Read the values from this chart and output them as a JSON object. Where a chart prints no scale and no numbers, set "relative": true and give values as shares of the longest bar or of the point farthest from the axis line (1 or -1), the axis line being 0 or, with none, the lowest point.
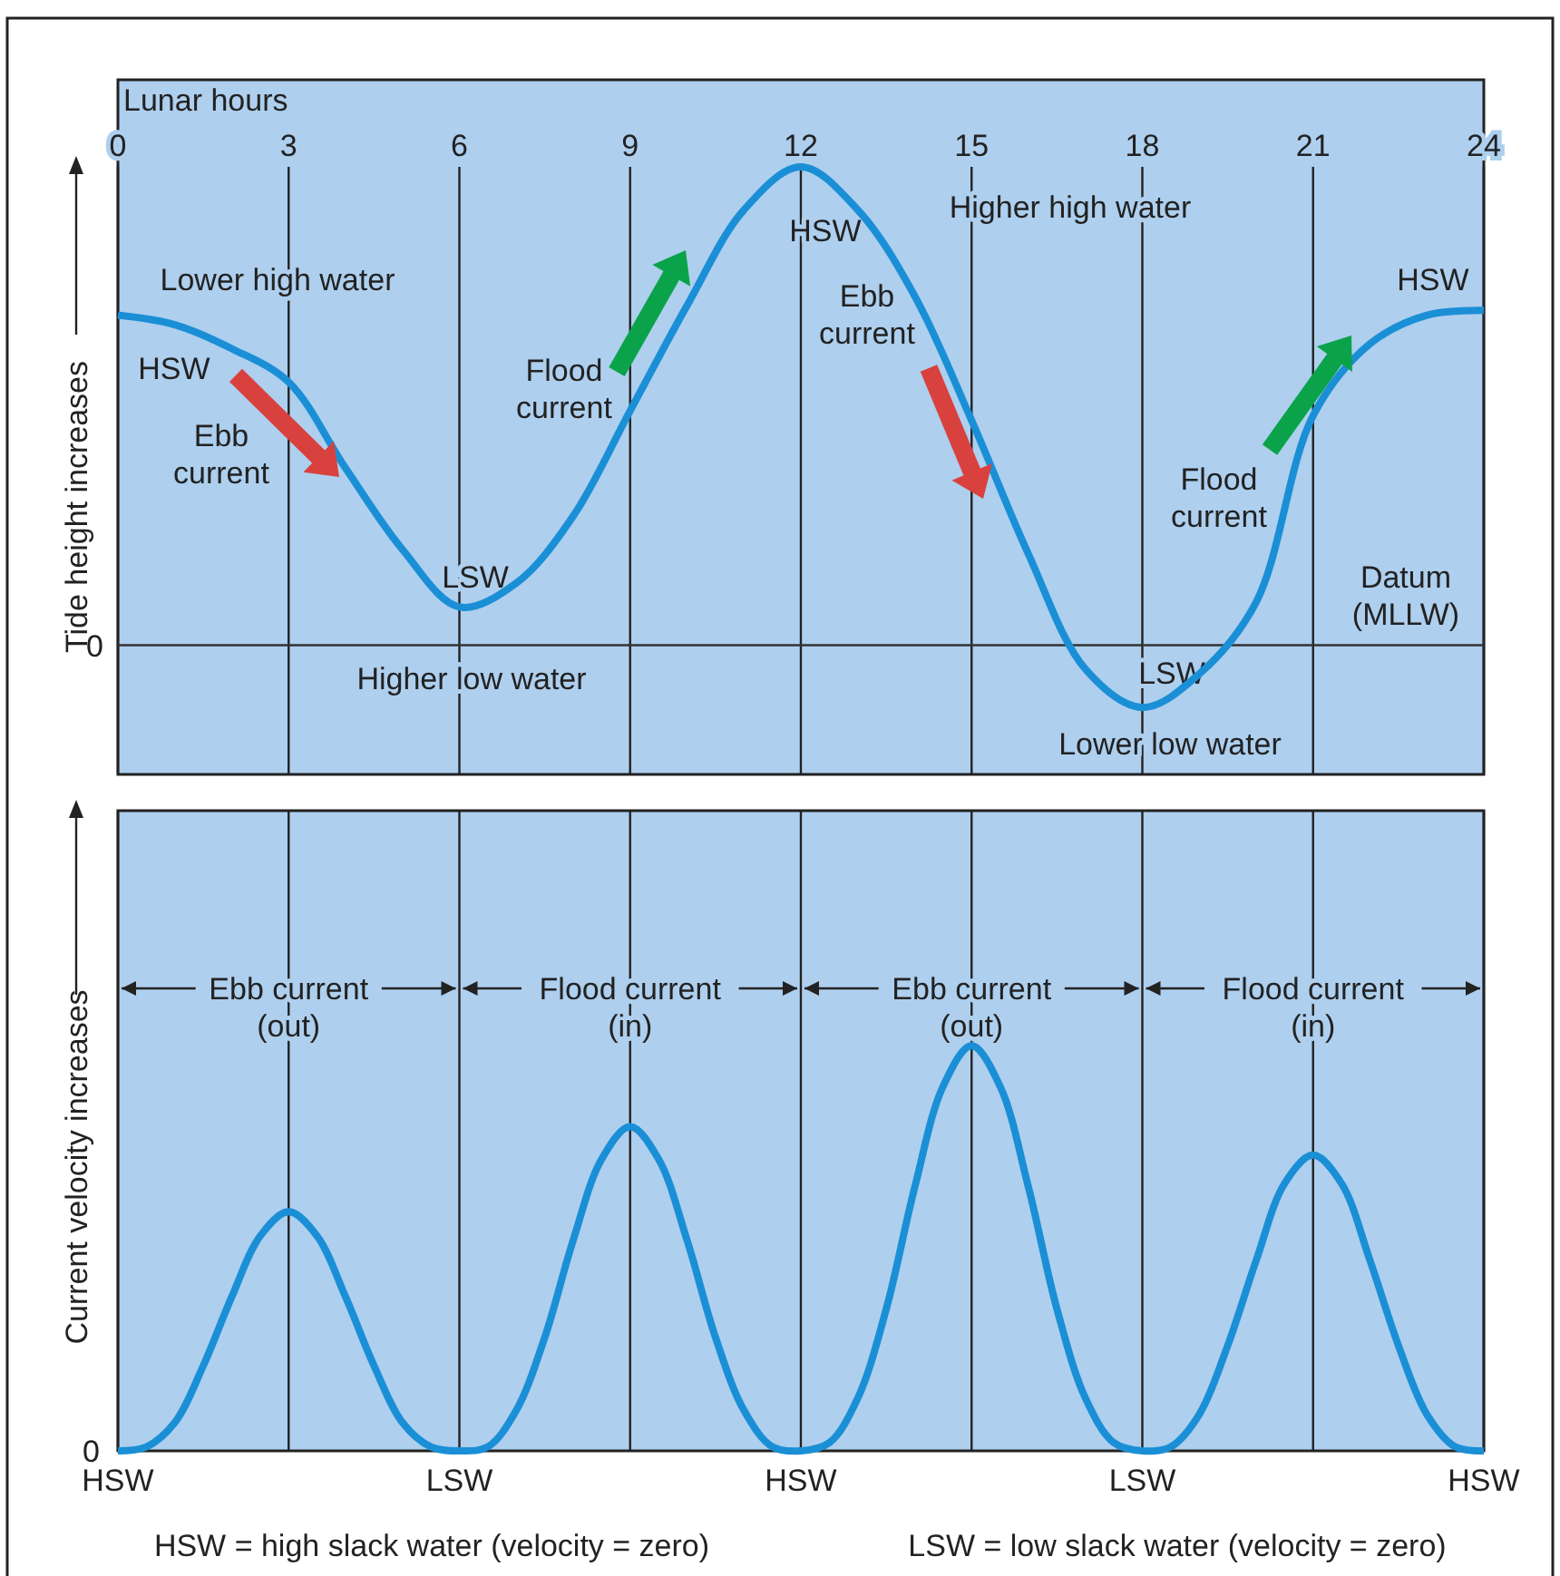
{
  "chart_data": [
    {
      "type": "line",
      "relative": true,
      "xlabel": "Lunar hours",
      "ylabel": "Tide height increases",
      "xlim": [
        0,
        24
      ],
      "xticks": [
        0,
        3,
        6,
        9,
        12,
        15,
        18,
        21,
        24
      ],
      "grid": "x",
      "marker": "none",
      "line_style": "solid",
      "x": [
        0,
        1,
        2,
        3,
        4,
        5,
        6,
        7,
        8,
        9,
        10,
        11,
        12,
        13,
        14,
        15,
        16,
        17,
        18,
        19,
        20,
        21,
        22,
        23,
        24
      ],
      "series": [
        {
          "color": "#1a8fd6",
          "values": [
            0.69,
            0.67,
            0.62,
            0.55,
            0.37,
            0.2,
            0.08,
            0.13,
            0.27,
            0.49,
            0.71,
            0.91,
            1.0,
            0.91,
            0.73,
            0.47,
            0.19,
            -0.05,
            -0.13,
            -0.06,
            0.09,
            0.48,
            0.63,
            0.69,
            0.7
          ]
        }
      ],
      "ref_lines": [
        {
          "axis": "y",
          "value": 0,
          "label": "0",
          "color": "#333333"
        }
      ],
      "annotations": [
        "Lower high water",
        "HSW",
        "Ebb\ncurrent",
        "LSW",
        "Higher low water",
        "Flood\ncurrent",
        "HSW",
        "Higher high water",
        "Ebb\ncurrent",
        "Flood\ncurrent",
        "LSW",
        "Lower low water",
        "HSW",
        "Datum\n(MLLW)"
      ]
    },
    {
      "type": "line",
      "relative": true,
      "ylabel": "Current velocity increases",
      "xlim": [
        0,
        24
      ],
      "xticks": [
        0,
        3,
        6,
        9,
        12,
        15,
        18,
        21,
        24
      ],
      "tick_labels": false,
      "grid": "x",
      "marker": "none",
      "line_style": "solid",
      "x": [
        0,
        0.5,
        1,
        1.5,
        2,
        2.5,
        3,
        3.5,
        4,
        4.5,
        5,
        5.5,
        6,
        6.5,
        7,
        7.5,
        8,
        8.5,
        9,
        9.5,
        10,
        10.5,
        11,
        11.5,
        12,
        12.5,
        13,
        13.5,
        14,
        14.5,
        15,
        15.5,
        16,
        16.5,
        17,
        17.5,
        18,
        18.5,
        19,
        19.5,
        20,
        20.5,
        21,
        21.5,
        22,
        22.5,
        23,
        23.5,
        24
      ],
      "series": [
        {
          "color": "#1a8fd6",
          "values": [
            0,
            0.01,
            0.07,
            0.21,
            0.38,
            0.53,
            0.59,
            0.53,
            0.38,
            0.21,
            0.07,
            0.01,
            0,
            0.01,
            0.1,
            0.28,
            0.52,
            0.72,
            0.8,
            0.72,
            0.52,
            0.28,
            0.1,
            0.01,
            0,
            0.02,
            0.13,
            0.35,
            0.65,
            0.9,
            1,
            0.9,
            0.65,
            0.35,
            0.13,
            0.02,
            0,
            0.01,
            0.09,
            0.26,
            0.47,
            0.66,
            0.73,
            0.66,
            0.47,
            0.26,
            0.09,
            0.01,
            0
          ]
        }
      ],
      "annotations": [
        "Ebb current\n(out)",
        "Flood current\n(in)",
        "Ebb current\n(out)",
        "Flood current\n(in)",
        "0",
        "HSW = high slack water (velocity = zero)",
        "LSW = low slack water (velocity = zero)",
        {
          "text": "HSW",
          "x": 0,
          "y": 0
        },
        {
          "text": "LSW",
          "x": 6,
          "y": 0
        },
        {
          "text": "HSW",
          "x": 12,
          "y": 0
        },
        {
          "text": "LSW",
          "x": 18,
          "y": 0
        },
        {
          "text": "HSW",
          "x": 24,
          "y": 0
        }
      ]
    }
  ]
}
